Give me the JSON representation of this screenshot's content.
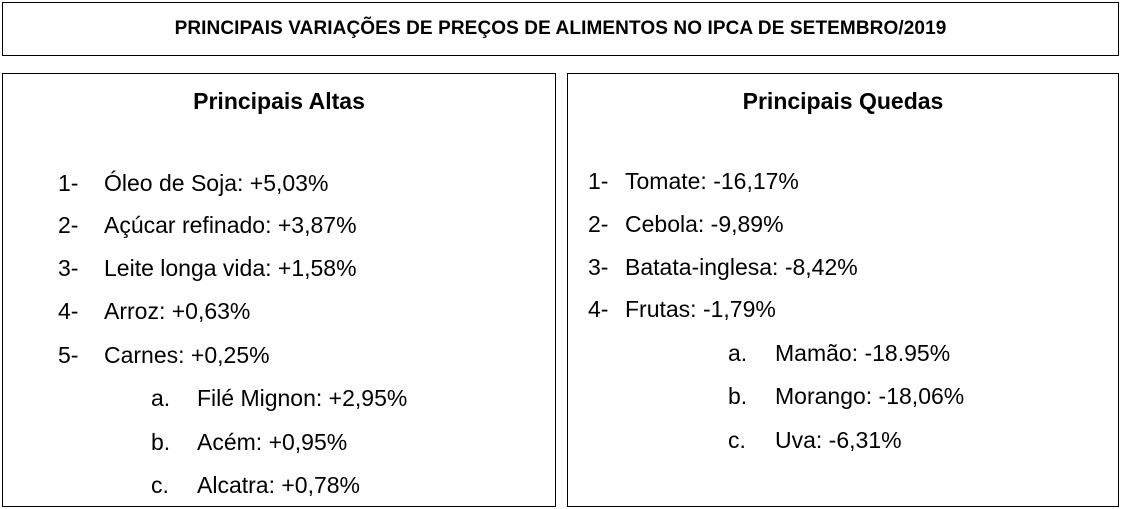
{
  "title": "PRINCIPAIS VARIAÇÕES DE PREÇOS DE ALIMENTOS NO IPCA DE SETEMBRO/2019",
  "altas": {
    "heading": "Principais Altas",
    "items": [
      {
        "marker": "1-",
        "label": "Óleo de Soja: +5,03%"
      },
      {
        "marker": "2-",
        "label": "Açúcar refinado: +3,87%"
      },
      {
        "marker": "3-",
        "label": "Leite longa vida: +1,58%"
      },
      {
        "marker": "4-",
        "label": "Arroz: +0,63%"
      },
      {
        "marker": "5-",
        "label": "Carnes: +0,25%"
      }
    ],
    "subitems": [
      {
        "marker": "a.",
        "label": "Filé Mignon: +2,95%"
      },
      {
        "marker": "b.",
        "label": "Acém: +0,95%"
      },
      {
        "marker": "c.",
        "label": "Alcatra: +0,78%"
      }
    ]
  },
  "quedas": {
    "heading": "Principais Quedas",
    "items": [
      {
        "marker": "1-",
        "label": "Tomate: -16,17%"
      },
      {
        "marker": "2-",
        "label": "Cebola: -9,89%"
      },
      {
        "marker": "3-",
        "label": "Batata-inglesa: -8,42%"
      },
      {
        "marker": "4-",
        "label": "Frutas: -1,79%"
      }
    ],
    "subitems": [
      {
        "marker": "a.",
        "label": "Mamão: -18.95%"
      },
      {
        "marker": "b.",
        "label": "Morango: -18,06%"
      },
      {
        "marker": "c.",
        "label": "Uva: -6,31%"
      }
    ]
  }
}
